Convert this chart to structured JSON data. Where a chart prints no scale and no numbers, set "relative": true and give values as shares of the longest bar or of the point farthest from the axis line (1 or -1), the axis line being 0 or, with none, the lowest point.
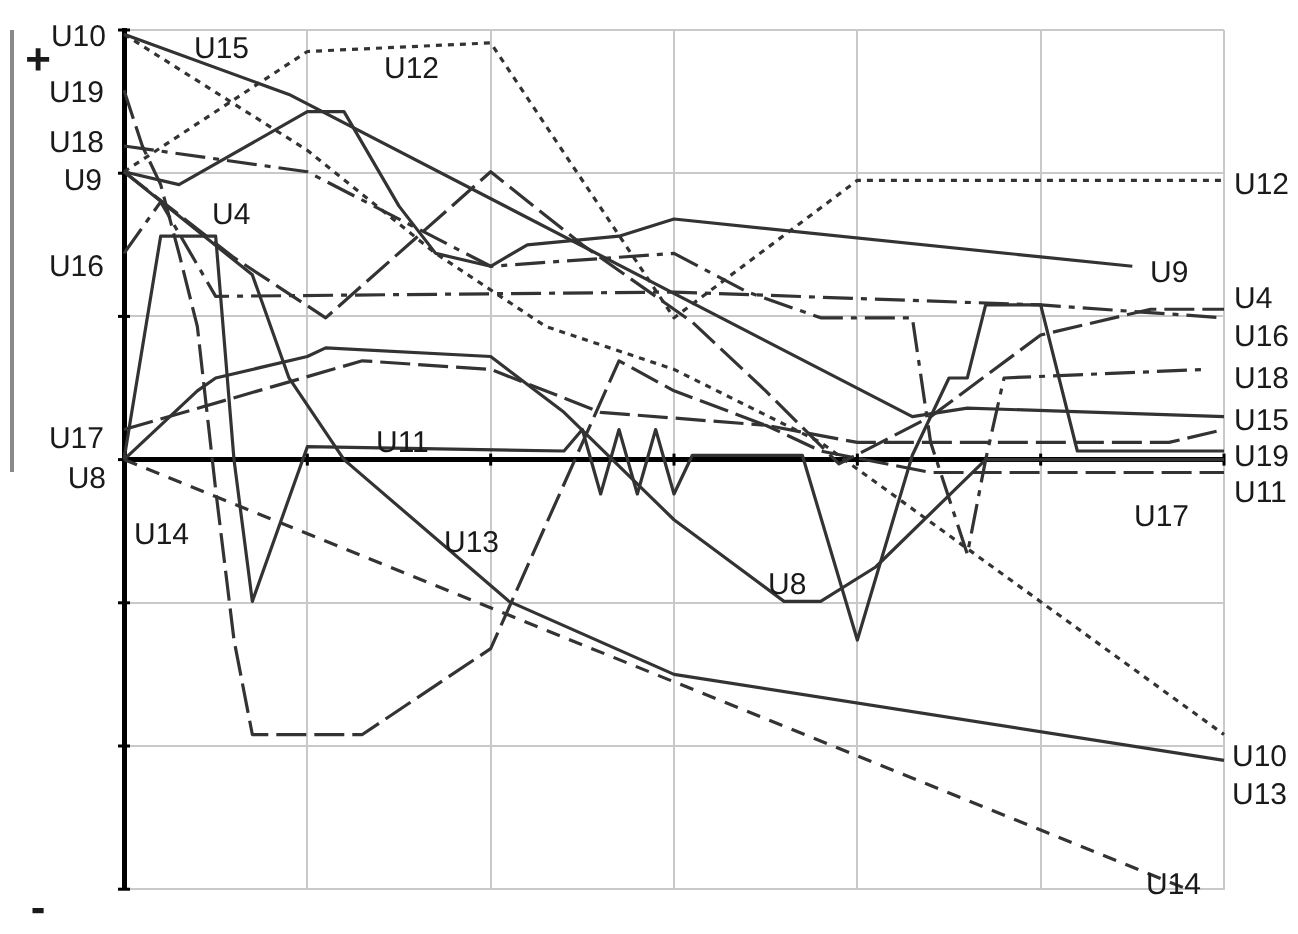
{
  "chart_data": {
    "type": "line",
    "relative": true,
    "grid": true,
    "marker": "none",
    "annotations": [
      "+",
      "-"
    ],
    "categories": [
      null,
      null,
      null,
      null,
      null,
      null,
      null,
      null,
      null,
      null,
      null,
      null,
      null,
      null,
      null,
      null,
      null,
      null,
      null,
      null,
      null,
      null,
      null,
      null,
      null,
      null,
      null,
      null,
      null,
      null,
      null,
      null,
      null,
      null,
      null,
      null,
      null,
      null,
      null,
      null,
      null,
      null,
      null,
      null,
      null,
      null,
      null,
      null,
      null,
      null,
      null,
      null,
      null,
      null,
      null,
      null,
      null,
      null,
      null,
      null,
      null
    ],
    "series": [
      {
        "name": "U4",
        "color": "#333333",
        "line_style": "longdash",
        "values": [
          0.67,
          null,
          null,
          null,
          null,
          null,
          0.47,
          null,
          null,
          null,
          null,
          0.33,
          null,
          null,
          null,
          null,
          null,
          null,
          null,
          null,
          0.67,
          null,
          null,
          null,
          null,
          0.5,
          null,
          null,
          null,
          null,
          null,
          0.32,
          null,
          null,
          null,
          0.16,
          null,
          null,
          null,
          -0.01,
          null,
          null,
          null,
          null,
          0.1,
          null,
          null,
          null,
          null,
          null,
          0.29,
          null,
          null,
          null,
          null,
          null,
          0.35,
          null,
          null,
          null,
          0.35
        ]
      },
      {
        "name": "U8",
        "color": "#333333",
        "line_style": "solid",
        "values": [
          0,
          null,
          null,
          null,
          0.16,
          0.19,
          null,
          null,
          null,
          null,
          0.24,
          0.26,
          null,
          null,
          null,
          null,
          null,
          null,
          null,
          null,
          0.24,
          null,
          null,
          null,
          0.11,
          null,
          null,
          null,
          null,
          null,
          -0.14,
          null,
          null,
          null,
          null,
          null,
          -0.33,
          null,
          -0.33,
          null,
          null,
          -0.25,
          null,
          null,
          null,
          null,
          null,
          0,
          null,
          null,
          null,
          null,
          null,
          null,
          null,
          null,
          null,
          null,
          null,
          null,
          0
        ]
      },
      {
        "name": "U9",
        "color": "#333333",
        "line_style": "solid",
        "values": [
          0.67,
          null,
          null,
          0.64,
          null,
          null,
          null,
          null,
          null,
          null,
          0.81,
          null,
          0.81,
          null,
          null,
          0.59,
          null,
          0.48,
          null,
          null,
          0.45,
          null,
          0.5,
          null,
          null,
          null,
          null,
          0.52,
          null,
          null,
          0.56,
          null,
          null,
          null,
          null,
          null,
          null,
          null,
          null,
          null,
          null,
          null,
          null,
          null,
          null,
          null,
          null,
          null,
          null,
          null,
          null,
          null,
          null,
          null,
          null,
          0.45,
          null,
          null,
          null,
          null,
          null
        ]
      },
      {
        "name": "U10",
        "color": "#333333",
        "line_style": "dotted",
        "values": [
          0.99,
          null,
          null,
          null,
          null,
          null,
          null,
          null,
          null,
          null,
          0.72,
          null,
          null,
          null,
          null,
          null,
          null,
          0.48,
          null,
          null,
          null,
          null,
          null,
          0.31,
          null,
          null,
          null,
          null,
          null,
          null,
          0.21,
          null,
          null,
          null,
          null,
          null,
          null,
          null,
          0.04,
          null,
          null,
          null,
          null,
          null,
          null,
          null,
          null,
          null,
          null,
          null,
          null,
          null,
          null,
          null,
          null,
          null,
          null,
          null,
          null,
          null,
          -0.64
        ]
      },
      {
        "name": "U11",
        "color": "#333333",
        "line_style": "solid",
        "values": [
          0,
          null,
          0.52,
          null,
          null,
          0.52,
          0,
          -0.33,
          null,
          null,
          0.03,
          null,
          null,
          null,
          null,
          null,
          null,
          null,
          null,
          null,
          null,
          null,
          null,
          null,
          0.02,
          0.07,
          -0.08,
          0.07,
          -0.08,
          0.07,
          -0.08,
          0.01,
          null,
          null,
          null,
          null,
          null,
          0.01,
          null,
          null,
          -0.42,
          null,
          null,
          0.01,
          null,
          0.19,
          0.19,
          0.36,
          null,
          null,
          0.36,
          null,
          0.02,
          null,
          null,
          null,
          null,
          null,
          null,
          null,
          0.02
        ]
      },
      {
        "name": "U12",
        "color": "#333333",
        "line_style": "dotted",
        "values": [
          0.67,
          null,
          null,
          null,
          null,
          null,
          null,
          null,
          null,
          null,
          0.95,
          null,
          null,
          null,
          null,
          null,
          null,
          null,
          null,
          null,
          0.97,
          null,
          null,
          null,
          null,
          null,
          null,
          null,
          null,
          null,
          0.33,
          null,
          null,
          null,
          null,
          null,
          null,
          null,
          null,
          null,
          0.65,
          null,
          null,
          null,
          null,
          null,
          null,
          null,
          null,
          null,
          null,
          null,
          null,
          null,
          null,
          null,
          null,
          null,
          null,
          null,
          0.65
        ]
      },
      {
        "name": "U13",
        "color": "#333333",
        "line_style": "solid",
        "values": [
          0.67,
          null,
          null,
          null,
          null,
          null,
          null,
          0.43,
          null,
          0.19,
          null,
          null,
          0,
          null,
          null,
          null,
          null,
          null,
          null,
          null,
          null,
          -0.33,
          null,
          null,
          null,
          null,
          null,
          null,
          null,
          null,
          -0.5,
          null,
          null,
          null,
          null,
          null,
          null,
          null,
          null,
          null,
          null,
          null,
          null,
          null,
          null,
          null,
          null,
          null,
          null,
          null,
          null,
          null,
          null,
          null,
          null,
          null,
          null,
          null,
          null,
          null,
          -0.7
        ]
      },
      {
        "name": "U14",
        "color": "#333333",
        "line_style": "dashed",
        "values": [
          0,
          null,
          null,
          null,
          null,
          null,
          null,
          null,
          null,
          null,
          null,
          null,
          null,
          null,
          null,
          null,
          null,
          null,
          null,
          null,
          null,
          null,
          null,
          null,
          null,
          null,
          null,
          null,
          null,
          null,
          null,
          null,
          null,
          null,
          null,
          null,
          null,
          null,
          null,
          null,
          null,
          null,
          null,
          null,
          null,
          null,
          null,
          null,
          null,
          null,
          null,
          null,
          null,
          null,
          null,
          null,
          null,
          null,
          -1,
          null,
          null
        ]
      },
      {
        "name": "U15",
        "color": "#333333",
        "line_style": "solid",
        "values": [
          0.99,
          null,
          null,
          null,
          null,
          null,
          null,
          null,
          null,
          0.85,
          null,
          null,
          null,
          null,
          null,
          null,
          null,
          null,
          null,
          null,
          null,
          null,
          null,
          null,
          null,
          null,
          null,
          null,
          null,
          null,
          null,
          null,
          null,
          null,
          null,
          null,
          null,
          null,
          null,
          null,
          null,
          null,
          null,
          0.1,
          null,
          null,
          0.12,
          null,
          null,
          null,
          null,
          null,
          null,
          null,
          null,
          null,
          null,
          null,
          null,
          null,
          0.1
        ]
      },
      {
        "name": "U16",
        "color": "#333333",
        "line_style": "dashdot",
        "values": [
          0.48,
          null,
          0.6,
          null,
          null,
          0.38,
          null,
          null,
          null,
          null,
          null,
          null,
          null,
          null,
          null,
          null,
          null,
          null,
          null,
          null,
          null,
          null,
          null,
          null,
          null,
          null,
          null,
          null,
          null,
          null,
          0.39,
          null,
          null,
          null,
          null,
          null,
          null,
          null,
          null,
          null,
          null,
          null,
          null,
          null,
          null,
          null,
          null,
          null,
          null,
          null,
          0.36,
          null,
          null,
          null,
          null,
          null,
          null,
          null,
          null,
          null,
          0.33
        ]
      },
      {
        "name": "U17",
        "color": "#333333",
        "line_style": "longdash",
        "values": [
          0.07,
          null,
          null,
          null,
          null,
          null,
          null,
          null,
          null,
          null,
          null,
          null,
          null,
          0.23,
          null,
          null,
          null,
          null,
          null,
          null,
          0.21,
          null,
          null,
          null,
          null,
          null,
          0.11,
          null,
          null,
          null,
          null,
          null,
          null,
          null,
          null,
          0.08,
          null,
          null,
          0.02,
          null,
          null,
          null,
          null,
          null,
          -0.03,
          null,
          null,
          null,
          null,
          null,
          null,
          null,
          null,
          null,
          null,
          null,
          null,
          null,
          null,
          null,
          -0.03
        ]
      },
      {
        "name": "U18",
        "color": "#333333",
        "line_style": "dashdot",
        "values": [
          0.73,
          null,
          null,
          null,
          null,
          null,
          null,
          null,
          null,
          null,
          0.67,
          null,
          null,
          null,
          null,
          null,
          null,
          null,
          null,
          null,
          0.45,
          null,
          null,
          null,
          null,
          null,
          null,
          null,
          null,
          null,
          0.48,
          null,
          null,
          null,
          0.39,
          null,
          null,
          null,
          0.33,
          null,
          null,
          null,
          null,
          0.33,
          0.04,
          null,
          -0.22,
          0,
          0.19,
          null,
          null,
          null,
          null,
          null,
          null,
          null,
          null,
          null,
          null,
          0.21,
          null
        ]
      },
      {
        "name": "U19",
        "color": "#333333",
        "line_style": "longdash",
        "values": [
          0.86,
          0.73,
          0.64,
          0.48,
          0.31,
          -0.07,
          -0.42,
          -0.64,
          null,
          null,
          null,
          null,
          null,
          -0.64,
          null,
          null,
          null,
          null,
          null,
          null,
          -0.44,
          null,
          null,
          null,
          null,
          null,
          null,
          0.23,
          null,
          null,
          0.16,
          null,
          null,
          null,
          null,
          0.08,
          null,
          null,
          null,
          null,
          0.04,
          null,
          null,
          null,
          null,
          null,
          null,
          null,
          null,
          null,
          null,
          null,
          null,
          null,
          null,
          null,
          null,
          0.04,
          null,
          null,
          0.07
        ]
      }
    ]
  }
}
